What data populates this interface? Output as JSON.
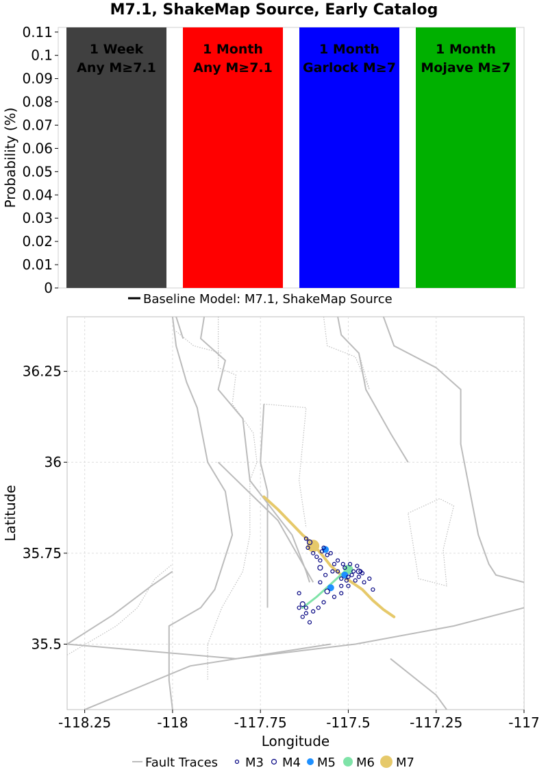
{
  "title": "M7.1, ShakeMap Source, Early Catalog",
  "chart_data": [
    {
      "type": "bar",
      "ylabel": "Probability (%)",
      "ylim": [
        0,
        0.112
      ],
      "yticks": [
        "0",
        "0.01",
        "0.02",
        "0.03",
        "0.04",
        "0.05",
        "0.06",
        "0.07",
        "0.08",
        "0.09",
        "0.1",
        "0.11"
      ],
      "bars": [
        {
          "line1": "1 Week",
          "line2": "Any M≥7.1",
          "value": 0.112,
          "color": "#404040"
        },
        {
          "line1": "1 Month",
          "line2": "Any M≥7.1",
          "value": 0.112,
          "color": "#ff0000"
        },
        {
          "line1": "1 Month",
          "line2": "Garlock M≥7",
          "value": 0.112,
          "color": "#0000ff"
        },
        {
          "line1": "1 Month",
          "line2": "Mojave M≥7",
          "value": 0.112,
          "color": "#00b000"
        }
      ],
      "legend": {
        "label": "Baseline Model: M7.1, ShakeMap Source",
        "color": "#000000",
        "placement": "bottom"
      }
    },
    {
      "type": "scatter",
      "xlabel": "Longitude",
      "ylabel": "Latitude",
      "xlim": [
        -118.3,
        -117.0
      ],
      "ylim": [
        35.32,
        36.4
      ],
      "xticks": [
        "-118.25",
        "-118",
        "-117.75",
        "-117.5",
        "-117.25",
        "-117"
      ],
      "yticks": [
        "35.5",
        "35.75",
        "36",
        "36.25"
      ],
      "grid": true,
      "legend_placement": "bottom",
      "legend": [
        {
          "label": "Fault Traces",
          "color": "#bbbbbb"
        },
        {
          "label": "M3",
          "color": "#000080"
        },
        {
          "label": "M4",
          "color": "#000080"
        },
        {
          "label": "M5",
          "color": "#1e90ff"
        },
        {
          "label": "M6",
          "color": "#7fe3a8"
        },
        {
          "label": "M7",
          "color": "#e6c96a"
        }
      ],
      "mainshock_rupture": {
        "color": "#e6c96a",
        "points": [
          [
            -117.74,
            35.905
          ],
          [
            -117.7,
            35.87
          ],
          [
            -117.66,
            35.83
          ],
          [
            -117.63,
            35.8
          ],
          [
            -117.6,
            35.775
          ],
          [
            -117.57,
            35.74
          ],
          [
            -117.55,
            35.715
          ],
          [
            -117.52,
            35.69
          ],
          [
            -117.49,
            35.67
          ],
          [
            -117.46,
            35.65
          ],
          [
            -117.43,
            35.62
          ],
          [
            -117.4,
            35.595
          ],
          [
            -117.37,
            35.575
          ]
        ]
      },
      "m6_rupture": {
        "color": "#7fe3a8",
        "points": [
          [
            -117.63,
            35.6
          ],
          [
            -117.59,
            35.63
          ],
          [
            -117.55,
            35.665
          ],
          [
            -117.51,
            35.7
          ]
        ]
      },
      "events": [
        {
          "mag": "M7",
          "lon": -117.6,
          "lat": 35.77
        },
        {
          "mag": "M6",
          "lon": -117.5,
          "lat": 35.705
        },
        {
          "mag": "M5",
          "lon": -117.565,
          "lat": 35.76
        },
        {
          "mag": "M5",
          "lon": -117.51,
          "lat": 35.69
        },
        {
          "mag": "M5",
          "lon": -117.55,
          "lat": 35.655
        },
        {
          "mag": "M4",
          "lon": -117.61,
          "lat": 35.78
        },
        {
          "mag": "M4",
          "lon": -117.58,
          "lat": 35.71
        },
        {
          "mag": "M4",
          "lon": -117.56,
          "lat": 35.645
        },
        {
          "mag": "M4",
          "lon": -117.47,
          "lat": 35.7
        },
        {
          "mag": "M4",
          "lon": -117.63,
          "lat": 35.61
        },
        {
          "mag": "M3",
          "lon": -117.62,
          "lat": 35.79
        },
        {
          "mag": "M3",
          "lon": -117.615,
          "lat": 35.765
        },
        {
          "mag": "M3",
          "lon": -117.6,
          "lat": 35.75
        },
        {
          "mag": "M3",
          "lon": -117.59,
          "lat": 35.74
        },
        {
          "mag": "M3",
          "lon": -117.575,
          "lat": 35.755
        },
        {
          "mag": "M3",
          "lon": -117.56,
          "lat": 35.745
        },
        {
          "mag": "M3",
          "lon": -117.55,
          "lat": 35.75
        },
        {
          "mag": "M3",
          "lon": -117.54,
          "lat": 35.72
        },
        {
          "mag": "M3",
          "lon": -117.53,
          "lat": 35.7
        },
        {
          "mag": "M3",
          "lon": -117.52,
          "lat": 35.68
        },
        {
          "mag": "M3",
          "lon": -117.51,
          "lat": 35.71
        },
        {
          "mag": "M3",
          "lon": -117.5,
          "lat": 35.685
        },
        {
          "mag": "M3",
          "lon": -117.49,
          "lat": 35.69
        },
        {
          "mag": "M3",
          "lon": -117.48,
          "lat": 35.675
        },
        {
          "mag": "M3",
          "lon": -117.475,
          "lat": 35.715
        },
        {
          "mag": "M3",
          "lon": -117.46,
          "lat": 35.695
        },
        {
          "mag": "M3",
          "lon": -117.455,
          "lat": 35.67
        },
        {
          "mag": "M3",
          "lon": -117.44,
          "lat": 35.68
        },
        {
          "mag": "M3",
          "lon": -117.43,
          "lat": 35.65
        },
        {
          "mag": "M3",
          "lon": -117.5,
          "lat": 35.66
        },
        {
          "mag": "M3",
          "lon": -117.52,
          "lat": 35.64
        },
        {
          "mag": "M3",
          "lon": -117.54,
          "lat": 35.63
        },
        {
          "mag": "M3",
          "lon": -117.57,
          "lat": 35.615
        },
        {
          "mag": "M3",
          "lon": -117.585,
          "lat": 35.6
        },
        {
          "mag": "M3",
          "lon": -117.6,
          "lat": 35.59
        },
        {
          "mag": "M3",
          "lon": -117.62,
          "lat": 35.585
        },
        {
          "mag": "M3",
          "lon": -117.63,
          "lat": 35.575
        },
        {
          "mag": "M3",
          "lon": -117.64,
          "lat": 35.64
        },
        {
          "mag": "M3",
          "lon": -117.62,
          "lat": 35.6
        },
        {
          "mag": "M3",
          "lon": -117.61,
          "lat": 35.56
        },
        {
          "mag": "M3",
          "lon": -117.58,
          "lat": 35.67
        },
        {
          "mag": "M3",
          "lon": -117.565,
          "lat": 35.69
        },
        {
          "mag": "M3",
          "lon": -117.545,
          "lat": 35.7
        },
        {
          "mag": "M3",
          "lon": -117.53,
          "lat": 35.73
        },
        {
          "mag": "M3",
          "lon": -117.515,
          "lat": 35.72
        },
        {
          "mag": "M3",
          "lon": -117.495,
          "lat": 35.72
        },
        {
          "mag": "M3",
          "lon": -117.485,
          "lat": 35.7
        },
        {
          "mag": "M3",
          "lon": -117.47,
          "lat": 35.685
        },
        {
          "mag": "M3",
          "lon": -117.465,
          "lat": 35.7
        },
        {
          "mag": "M3",
          "lon": -117.52,
          "lat": 35.66
        },
        {
          "mag": "M3",
          "lon": -117.505,
          "lat": 35.675
        },
        {
          "mag": "M3",
          "lon": -117.58,
          "lat": 35.73
        },
        {
          "mag": "M3",
          "lon": -117.57,
          "lat": 35.765
        },
        {
          "mag": "M3",
          "lon": -117.64,
          "lat": 35.6
        }
      ],
      "fault_lines": [
        [
          [
            -118.0,
            36.4
          ],
          [
            -117.99,
            36.32
          ],
          [
            -117.96,
            36.22
          ],
          [
            -117.93,
            36.15
          ],
          [
            -117.9,
            36.0
          ],
          [
            -117.85,
            35.92
          ],
          [
            -117.83,
            35.8
          ],
          [
            -117.88,
            35.65
          ],
          [
            -117.92,
            35.6
          ],
          [
            -118.01,
            35.55
          ],
          [
            -118.01,
            35.4
          ],
          [
            -118.0,
            35.32
          ]
        ],
        [
          [
            -117.99,
            36.4
          ],
          [
            -117.97,
            36.34
          ]
        ],
        [
          [
            -117.91,
            36.4
          ],
          [
            -117.92,
            36.34
          ],
          [
            -117.85,
            36.28
          ],
          [
            -117.87,
            36.2
          ],
          [
            -117.8,
            36.12
          ],
          [
            -117.78,
            35.95
          ],
          [
            -117.7,
            35.85
          ],
          [
            -117.66,
            35.8
          ],
          [
            -117.62,
            35.7
          ],
          [
            -117.61,
            35.67
          ]
        ],
        [
          [
            -117.87,
            36.0
          ],
          [
            -117.7,
            35.84
          ],
          [
            -117.6,
            35.67
          ]
        ],
        [
          [
            -117.74,
            36.16
          ],
          [
            -117.75,
            36.0
          ],
          [
            -117.73,
            35.92
          ],
          [
            -117.73,
            35.78
          ],
          [
            -117.73,
            35.6
          ]
        ],
        [
          [
            -117.53,
            36.4
          ],
          [
            -117.52,
            36.35
          ],
          [
            -117.47,
            36.3
          ],
          [
            -117.45,
            36.2
          ],
          [
            -117.38,
            36.08
          ],
          [
            -117.33,
            36.0
          ]
        ],
        [
          [
            -117.4,
            36.4
          ],
          [
            -117.37,
            36.32
          ],
          [
            -117.25,
            36.26
          ],
          [
            -117.18,
            36.2
          ],
          [
            -117.18,
            36.05
          ],
          [
            -117.15,
            35.9
          ],
          [
            -117.13,
            35.8
          ],
          [
            -117.1,
            35.72
          ],
          [
            -117.08,
            35.69
          ],
          [
            -117.0,
            35.67
          ]
        ],
        [
          [
            -118.3,
            35.5
          ],
          [
            -118.17,
            35.58
          ],
          [
            -118.06,
            35.66
          ],
          [
            -118.0,
            35.7
          ]
        ],
        [
          [
            -118.3,
            35.5
          ],
          [
            -117.82,
            35.46
          ],
          [
            -117.48,
            35.5
          ],
          [
            -117.2,
            35.55
          ],
          [
            -117.0,
            35.6
          ]
        ],
        [
          [
            -118.25,
            35.32
          ],
          [
            -117.95,
            35.44
          ],
          [
            -117.75,
            35.47
          ],
          [
            -117.55,
            35.5
          ]
        ],
        [
          [
            -117.38,
            35.46
          ],
          [
            -117.25,
            35.36
          ],
          [
            -117.22,
            35.32
          ]
        ]
      ],
      "fault_dotted": [
        [
          [
            -117.87,
            36.4
          ],
          [
            -117.87,
            36.26
          ],
          [
            -117.82,
            36.24
          ],
          [
            -117.83,
            36.16
          ],
          [
            -117.77,
            36.08
          ],
          [
            -117.76,
            36.0
          ],
          [
            -117.78,
            35.95
          ],
          [
            -117.78,
            35.8
          ],
          [
            -117.8,
            35.7
          ],
          [
            -117.86,
            35.6
          ],
          [
            -117.9,
            35.5
          ],
          [
            -117.9,
            35.4
          ]
        ],
        [
          [
            -117.99,
            36.36
          ],
          [
            -117.94,
            36.32
          ],
          [
            -117.86,
            36.3
          ]
        ],
        [
          [
            -117.74,
            36.16
          ],
          [
            -117.62,
            36.15
          ],
          [
            -117.63,
            36.05
          ],
          [
            -117.64,
            35.95
          ],
          [
            -117.62,
            35.82
          ]
        ],
        [
          [
            -117.57,
            36.4
          ],
          [
            -117.56,
            36.32
          ],
          [
            -117.48,
            36.29
          ],
          [
            -117.44,
            36.2
          ],
          [
            -117.47,
            36.3
          ]
        ],
        [
          [
            -118.3,
            35.47
          ],
          [
            -118.16,
            35.55
          ],
          [
            -118.1,
            35.6
          ],
          [
            -118.05,
            35.68
          ],
          [
            -118.0,
            35.72
          ]
        ],
        [
          [
            -117.33,
            35.86
          ],
          [
            -117.24,
            35.9
          ],
          [
            -117.2,
            35.88
          ],
          [
            -117.23,
            35.76
          ],
          [
            -117.22,
            35.66
          ],
          [
            -117.3,
            35.68
          ],
          [
            -117.33,
            35.86
          ]
        ]
      ]
    }
  ]
}
